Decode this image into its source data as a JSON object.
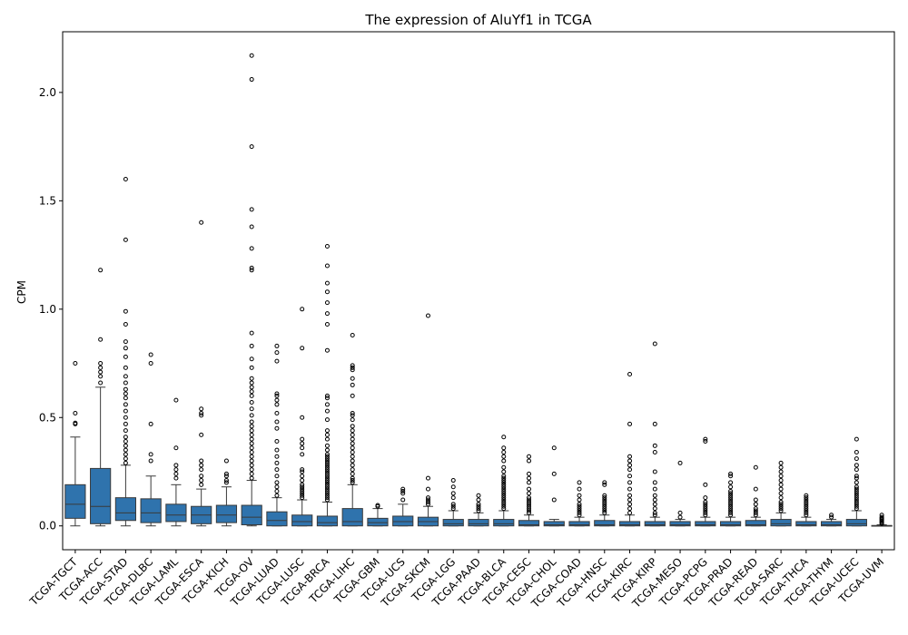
{
  "chart_data": {
    "type": "box",
    "title": "The expression of AluYf1 in TCGA",
    "xlabel": "",
    "ylabel": "CPM",
    "ylim": [
      -0.11,
      2.28
    ],
    "yticks": [
      "0.0",
      "0.5",
      "1.0",
      "1.5",
      "2.0"
    ],
    "box_color": "#2f73ad",
    "categories": [
      "TCGA-TGCT",
      "TCGA-ACC",
      "TCGA-STAD",
      "TCGA-DLBC",
      "TCGA-LAML",
      "TCGA-ESCA",
      "TCGA-KICH",
      "TCGA-OV",
      "TCGA-LUAD",
      "TCGA-LUSC",
      "TCGA-BRCA",
      "TCGA-LIHC",
      "TCGA-GBM",
      "TCGA-UCS",
      "TCGA-SKCM",
      "TCGA-LGG",
      "TCGA-PAAD",
      "TCGA-BLCA",
      "TCGA-CESC",
      "TCGA-CHOL",
      "TCGA-COAD",
      "TCGA-HNSC",
      "TCGA-KIRC",
      "TCGA-KIRP",
      "TCGA-MESO",
      "TCGA-PCPG",
      "TCGA-PRAD",
      "TCGA-READ",
      "TCGA-SARC",
      "TCGA-THCA",
      "TCGA-THYM",
      "TCGA-UCEC",
      "TCGA-UVM"
    ],
    "boxes": [
      {
        "min": 0.0,
        "q1": 0.035,
        "median": 0.1,
        "q3": 0.19,
        "max": 0.41,
        "outliers": [
          0.47,
          0.475,
          0.52,
          0.75
        ]
      },
      {
        "min": 0.0,
        "q1": 0.01,
        "median": 0.09,
        "q3": 0.265,
        "max": 0.64,
        "outliers": [
          0.66,
          0.69,
          0.71,
          0.73,
          0.75,
          0.86,
          1.18
        ]
      },
      {
        "min": 0.0,
        "q1": 0.025,
        "median": 0.06,
        "q3": 0.13,
        "max": 0.28,
        "outliers": [
          0.29,
          0.31,
          0.33,
          0.35,
          0.37,
          0.39,
          0.41,
          0.44,
          0.47,
          0.5,
          0.53,
          0.56,
          0.59,
          0.61,
          0.63,
          0.66,
          0.69,
          0.73,
          0.78,
          0.82,
          0.85,
          0.93,
          0.99,
          1.32,
          1.6
        ]
      },
      {
        "min": 0.0,
        "q1": 0.015,
        "median": 0.06,
        "q3": 0.125,
        "max": 0.23,
        "outliers": [
          0.3,
          0.33,
          0.47,
          0.75,
          0.79
        ]
      },
      {
        "min": 0.0,
        "q1": 0.02,
        "median": 0.05,
        "q3": 0.1,
        "max": 0.19,
        "outliers": [
          0.22,
          0.24,
          0.26,
          0.28,
          0.36,
          0.58
        ]
      },
      {
        "min": 0.0,
        "q1": 0.01,
        "median": 0.05,
        "q3": 0.09,
        "max": 0.17,
        "outliers": [
          0.19,
          0.21,
          0.23,
          0.26,
          0.28,
          0.3,
          0.42,
          0.51,
          0.52,
          0.54,
          1.4
        ]
      },
      {
        "min": 0.0,
        "q1": 0.015,
        "median": 0.05,
        "q3": 0.095,
        "max": 0.18,
        "outliers": [
          0.2,
          0.21,
          0.23,
          0.24,
          0.3
        ]
      },
      {
        "min": 0.0,
        "q1": 0.005,
        "median": 0.04,
        "q3": 0.095,
        "max": 0.21,
        "outliers": [
          0.22,
          0.24,
          0.26,
          0.28,
          0.3,
          0.32,
          0.34,
          0.36,
          0.38,
          0.4,
          0.42,
          0.44,
          0.46,
          0.48,
          0.51,
          0.54,
          0.57,
          0.6,
          0.62,
          0.64,
          0.66,
          0.68,
          0.73,
          0.77,
          0.83,
          0.89,
          1.18,
          1.19,
          1.28,
          1.38,
          1.46,
          1.75,
          2.06,
          2.17
        ]
      },
      {
        "min": 0.0,
        "q1": 0.0,
        "median": 0.025,
        "q3": 0.065,
        "max": 0.13,
        "outliers": [
          0.14,
          0.16,
          0.18,
          0.2,
          0.23,
          0.26,
          0.29,
          0.32,
          0.35,
          0.39,
          0.45,
          0.48,
          0.52,
          0.56,
          0.58,
          0.6,
          0.61,
          0.76,
          0.8,
          0.83
        ]
      },
      {
        "min": 0.0,
        "q1": 0.0,
        "median": 0.02,
        "q3": 0.05,
        "max": 0.12,
        "outliers": [
          0.13,
          0.14,
          0.15,
          0.16,
          0.17,
          0.18,
          0.19,
          0.21,
          0.23,
          0.25,
          0.26,
          0.33,
          0.36,
          0.38,
          0.4,
          0.5,
          0.82,
          1.0
        ]
      },
      {
        "min": 0.0,
        "q1": 0.0,
        "median": 0.015,
        "q3": 0.045,
        "max": 0.11,
        "outliers": [
          0.12,
          0.13,
          0.14,
          0.15,
          0.16,
          0.17,
          0.18,
          0.19,
          0.2,
          0.21,
          0.22,
          0.23,
          0.24,
          0.25,
          0.26,
          0.27,
          0.28,
          0.29,
          0.3,
          0.31,
          0.32,
          0.33,
          0.35,
          0.37,
          0.4,
          0.42,
          0.44,
          0.49,
          0.53,
          0.56,
          0.59,
          0.6,
          0.81,
          0.93,
          0.98,
          1.03,
          1.08,
          1.12,
          1.2,
          1.29
        ]
      },
      {
        "min": 0.0,
        "q1": 0.0,
        "median": 0.02,
        "q3": 0.08,
        "max": 0.19,
        "outliers": [
          0.2,
          0.21,
          0.22,
          0.24,
          0.26,
          0.28,
          0.3,
          0.32,
          0.34,
          0.36,
          0.38,
          0.4,
          0.42,
          0.44,
          0.46,
          0.49,
          0.51,
          0.52,
          0.6,
          0.65,
          0.68,
          0.72,
          0.73,
          0.74,
          0.88
        ]
      },
      {
        "min": 0.0,
        "q1": 0.0,
        "median": 0.015,
        "q3": 0.035,
        "max": 0.08,
        "outliers": [
          0.09,
          0.095
        ]
      },
      {
        "min": 0.0,
        "q1": 0.0,
        "median": 0.02,
        "q3": 0.045,
        "max": 0.1,
        "outliers": [
          0.12,
          0.15,
          0.16,
          0.17
        ]
      },
      {
        "min": 0.0,
        "q1": 0.0,
        "median": 0.02,
        "q3": 0.04,
        "max": 0.09,
        "outliers": [
          0.1,
          0.11,
          0.12,
          0.13,
          0.17,
          0.22,
          0.97
        ]
      },
      {
        "min": 0.0,
        "q1": 0.0,
        "median": 0.01,
        "q3": 0.03,
        "max": 0.07,
        "outliers": [
          0.08,
          0.09,
          0.1,
          0.13,
          0.15,
          0.18,
          0.21
        ]
      },
      {
        "min": 0.0,
        "q1": 0.0,
        "median": 0.01,
        "q3": 0.03,
        "max": 0.06,
        "outliers": [
          0.07,
          0.08,
          0.09,
          0.1,
          0.12,
          0.14
        ]
      },
      {
        "min": 0.0,
        "q1": 0.0,
        "median": 0.01,
        "q3": 0.03,
        "max": 0.07,
        "outliers": [
          0.08,
          0.09,
          0.1,
          0.11,
          0.12,
          0.13,
          0.14,
          0.15,
          0.16,
          0.17,
          0.18,
          0.19,
          0.2,
          0.21,
          0.22,
          0.23,
          0.25,
          0.27,
          0.3,
          0.32,
          0.34,
          0.36,
          0.41
        ]
      },
      {
        "min": 0.0,
        "q1": 0.0,
        "median": 0.005,
        "q3": 0.025,
        "max": 0.05,
        "outliers": [
          0.06,
          0.07,
          0.08,
          0.09,
          0.1,
          0.11,
          0.12,
          0.13,
          0.15,
          0.17,
          0.2,
          0.22,
          0.24,
          0.3,
          0.32
        ]
      },
      {
        "min": 0.0,
        "q1": 0.0,
        "median": 0.005,
        "q3": 0.02,
        "max": 0.03,
        "outliers": [
          0.12,
          0.24,
          0.36
        ]
      },
      {
        "min": 0.0,
        "q1": 0.0,
        "median": 0.005,
        "q3": 0.02,
        "max": 0.04,
        "outliers": [
          0.05,
          0.06,
          0.07,
          0.08,
          0.09,
          0.1,
          0.12,
          0.14,
          0.17,
          0.2
        ]
      },
      {
        "min": 0.0,
        "q1": 0.0,
        "median": 0.005,
        "q3": 0.025,
        "max": 0.05,
        "outliers": [
          0.06,
          0.07,
          0.08,
          0.09,
          0.1,
          0.11,
          0.12,
          0.13,
          0.14,
          0.19,
          0.2
        ]
      },
      {
        "min": 0.0,
        "q1": 0.0,
        "median": 0.005,
        "q3": 0.02,
        "max": 0.05,
        "outliers": [
          0.06,
          0.08,
          0.1,
          0.12,
          0.14,
          0.17,
          0.2,
          0.23,
          0.26,
          0.28,
          0.3,
          0.32,
          0.47,
          0.7
        ]
      },
      {
        "min": 0.0,
        "q1": 0.0,
        "median": 0.005,
        "q3": 0.02,
        "max": 0.04,
        "outliers": [
          0.05,
          0.06,
          0.08,
          0.1,
          0.12,
          0.14,
          0.17,
          0.2,
          0.25,
          0.34,
          0.37,
          0.47,
          0.84
        ]
      },
      {
        "min": 0.0,
        "q1": 0.0,
        "median": 0.005,
        "q3": 0.02,
        "max": 0.03,
        "outliers": [
          0.04,
          0.06,
          0.29
        ]
      },
      {
        "min": 0.0,
        "q1": 0.0,
        "median": 0.005,
        "q3": 0.02,
        "max": 0.04,
        "outliers": [
          0.05,
          0.06,
          0.07,
          0.08,
          0.09,
          0.1,
          0.11,
          0.13,
          0.19,
          0.39,
          0.4
        ]
      },
      {
        "min": 0.0,
        "q1": 0.0,
        "median": 0.005,
        "q3": 0.02,
        "max": 0.04,
        "outliers": [
          0.05,
          0.06,
          0.07,
          0.08,
          0.09,
          0.1,
          0.11,
          0.12,
          0.13,
          0.14,
          0.15,
          0.16,
          0.18,
          0.2,
          0.23,
          0.24
        ]
      },
      {
        "min": 0.0,
        "q1": 0.0,
        "median": 0.005,
        "q3": 0.025,
        "max": 0.04,
        "outliers": [
          0.05,
          0.06,
          0.07,
          0.08,
          0.1,
          0.12,
          0.17,
          0.27
        ]
      },
      {
        "min": 0.0,
        "q1": 0.0,
        "median": 0.01,
        "q3": 0.03,
        "max": 0.06,
        "outliers": [
          0.07,
          0.08,
          0.09,
          0.1,
          0.11,
          0.13,
          0.15,
          0.17,
          0.19,
          0.21,
          0.23,
          0.25,
          0.27,
          0.29
        ]
      },
      {
        "min": 0.0,
        "q1": 0.0,
        "median": 0.005,
        "q3": 0.02,
        "max": 0.04,
        "outliers": [
          0.05,
          0.06,
          0.07,
          0.08,
          0.09,
          0.1,
          0.11,
          0.12,
          0.13,
          0.14
        ]
      },
      {
        "min": 0.0,
        "q1": 0.0,
        "median": 0.005,
        "q3": 0.02,
        "max": 0.03,
        "outliers": [
          0.04,
          0.05
        ]
      },
      {
        "min": 0.0,
        "q1": 0.0,
        "median": 0.01,
        "q3": 0.03,
        "max": 0.07,
        "outliers": [
          0.08,
          0.09,
          0.1,
          0.11,
          0.12,
          0.13,
          0.14,
          0.15,
          0.16,
          0.17,
          0.18,
          0.2,
          0.22,
          0.23,
          0.26,
          0.28,
          0.31,
          0.34,
          0.4
        ]
      },
      {
        "min": 0.0,
        "q1": 0.0,
        "median": 0.0,
        "q3": 0.002,
        "max": 0.005,
        "outliers": [
          0.01,
          0.015,
          0.02,
          0.025,
          0.03,
          0.035,
          0.04,
          0.05
        ]
      }
    ]
  }
}
